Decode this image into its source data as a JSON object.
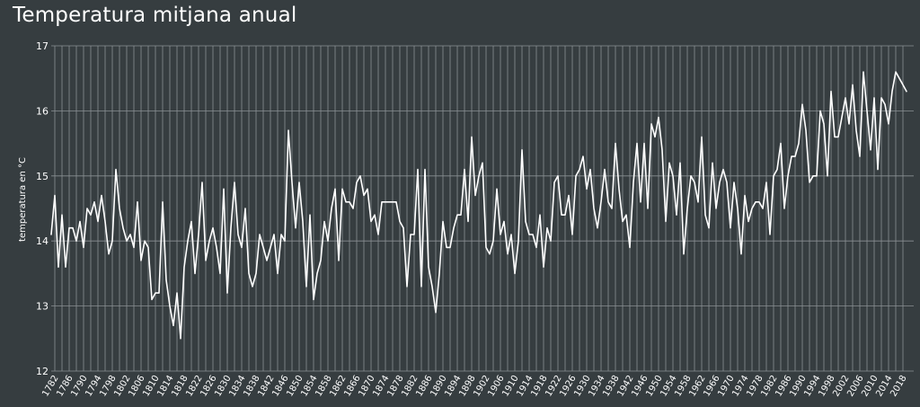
{
  "chart_data": {
    "type": "line",
    "title": "Temperatura mitjana anual",
    "ylabel": "temperatura en °C",
    "xlabel": "",
    "ylim": [
      12,
      17
    ],
    "xlim": [
      1780,
      2020
    ],
    "yticks": [
      12,
      13,
      14,
      15,
      16,
      17
    ],
    "xticks": [
      1782,
      1786,
      1790,
      1794,
      1798,
      1802,
      1806,
      1810,
      1814,
      1818,
      1822,
      1826,
      1830,
      1834,
      1838,
      1842,
      1846,
      1850,
      1854,
      1858,
      1862,
      1866,
      1870,
      1874,
      1878,
      1882,
      1886,
      1890,
      1894,
      1898,
      1902,
      1906,
      1910,
      1914,
      1918,
      1922,
      1926,
      1930,
      1934,
      1938,
      1942,
      1946,
      1950,
      1954,
      1958,
      1962,
      1966,
      1970,
      1974,
      1978,
      1982,
      1986,
      1990,
      1994,
      1998,
      2002,
      2006,
      2010,
      2014,
      2018
    ],
    "grid": "vertical lines every 2 years, horizontal lines at each degree",
    "colors": {
      "background": "#363d40",
      "line": "#ffffff",
      "grid": "#8a9093"
    },
    "series": [
      {
        "x_start": 1781,
        "values": [
          14.1,
          14.7,
          13.6,
          14.4,
          13.6,
          14.2,
          14.2,
          14.0,
          14.3,
          13.9,
          14.5,
          14.4,
          14.6,
          14.3,
          14.7,
          14.3,
          13.8,
          14.0,
          15.1,
          14.5,
          14.2,
          14.0,
          14.1,
          13.9,
          14.6,
          13.7,
          14.0,
          13.9,
          13.1,
          13.2,
          13.2,
          14.6,
          13.4,
          13.0,
          12.7,
          13.2,
          12.5,
          13.6,
          14.0,
          14.3,
          13.5,
          14.1,
          14.9,
          13.7,
          14.0,
          14.2,
          13.9,
          13.5,
          14.8,
          13.2,
          14.2,
          14.9,
          14.1,
          13.9,
          14.5,
          13.5,
          13.3,
          13.5,
          14.1,
          13.9,
          13.7,
          13.9,
          14.1,
          13.5,
          14.1,
          14.0,
          15.7,
          14.9,
          14.2,
          14.9,
          14.3,
          13.3,
          14.4,
          13.1,
          13.5,
          13.7,
          14.3,
          14.0,
          14.5,
          14.8,
          13.7,
          14.8,
          14.6,
          14.6,
          14.5,
          14.9,
          15.0,
          14.7,
          14.8,
          14.3,
          14.4,
          14.1,
          14.6,
          14.6,
          14.6,
          14.6,
          14.6,
          14.3,
          14.2,
          13.3,
          14.1,
          14.1,
          15.1,
          13.3,
          15.1,
          13.6,
          13.3,
          12.9,
          13.5,
          14.3,
          13.9,
          13.9,
          14.2,
          14.4,
          14.4,
          15.1,
          14.3,
          15.6,
          14.7,
          15.0,
          15.2,
          13.9,
          13.8,
          14.0,
          14.8,
          14.1,
          14.3,
          13.8,
          14.1,
          13.5,
          14.0,
          15.4,
          14.3,
          14.1,
          14.1,
          13.9,
          14.4,
          13.6,
          14.2,
          14.0,
          14.9,
          15.0,
          14.4,
          14.4,
          14.7,
          14.1,
          15.0,
          15.1,
          15.3,
          14.8,
          15.1,
          14.5,
          14.2,
          14.6,
          15.1,
          14.6,
          14.5,
          15.5,
          14.8,
          14.3,
          14.4,
          13.9,
          14.9,
          15.5,
          14.6,
          15.5,
          14.5,
          15.8,
          15.6,
          15.9,
          15.4,
          14.3,
          15.2,
          15.0,
          14.4,
          15.2,
          13.8,
          14.5,
          15.0,
          14.9,
          14.6,
          15.6,
          14.4,
          14.2,
          15.2,
          14.5,
          14.9,
          15.1,
          14.9,
          14.2,
          14.9,
          14.5,
          13.8,
          14.7,
          14.3,
          14.5,
          14.6,
          14.6,
          14.5,
          14.9,
          14.1,
          15.0,
          15.1,
          15.5,
          14.5,
          15.0,
          15.3,
          15.3,
          15.5,
          16.1,
          15.7,
          14.9,
          15.0,
          15.0,
          16.0,
          15.8,
          15.0,
          16.3,
          15.6,
          15.6,
          15.9,
          16.2,
          15.8,
          16.4,
          15.7,
          15.3,
          16.6,
          16.0,
          15.4,
          16.2,
          15.1,
          16.2,
          16.1,
          15.8,
          16.3,
          16.6,
          16.5,
          16.4,
          16.3
        ]
      }
    ]
  }
}
